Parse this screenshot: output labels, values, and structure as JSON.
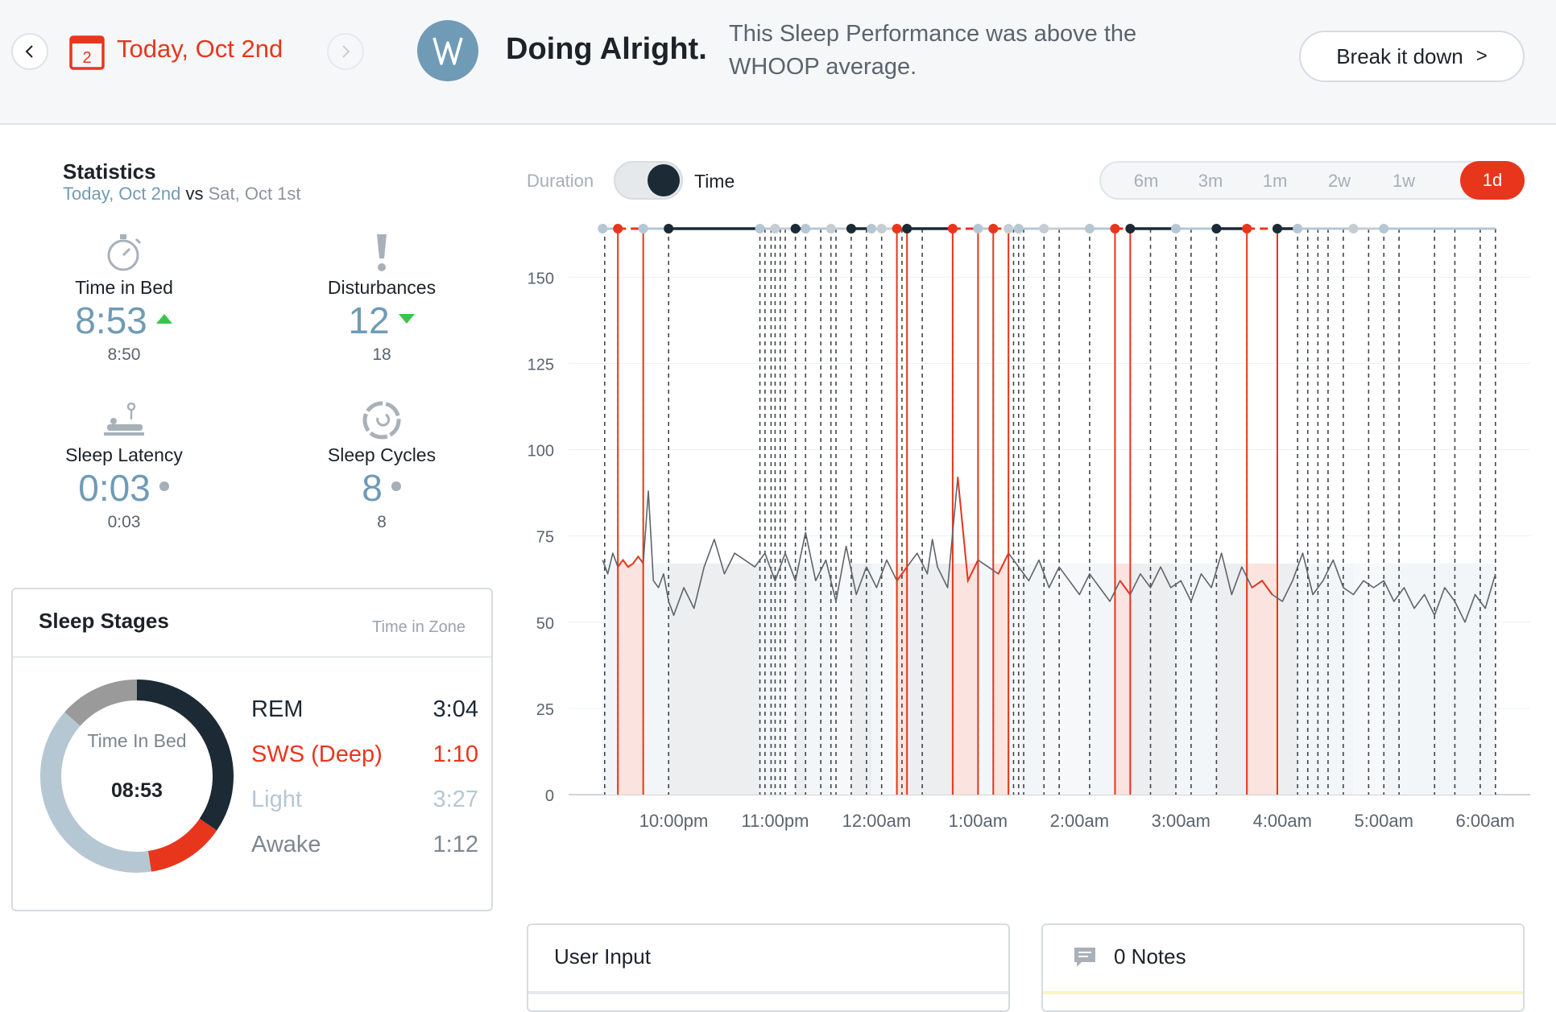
{
  "header": {
    "calendar_day": "2",
    "date_label": "Today, Oct 2nd",
    "headline": "Doing Alright.",
    "subline": "This Sleep Performance was above the WHOOP average.",
    "break_button_label": "Break it down",
    "break_button_chevron": ">",
    "logo_letters": "W"
  },
  "statistics": {
    "title": "Statistics",
    "current_label": "Today, Oct 2nd",
    "vs_label": "vs",
    "compare_label": "Sat, Oct 1st",
    "items": [
      {
        "label": "Time in Bed",
        "value": "8:53",
        "previous": "8:50",
        "trend": "up",
        "icon": "stopwatch-icon"
      },
      {
        "label": "Disturbances",
        "value": "12",
        "previous": "18",
        "trend": "down",
        "icon": "exclamation-icon"
      },
      {
        "label": "Sleep Latency",
        "value": "0:03",
        "previous": "0:03",
        "trend": "same",
        "icon": "bed-icon"
      },
      {
        "label": "Sleep Cycles",
        "value": "8",
        "previous": "8",
        "trend": "same",
        "icon": "cycle-icon"
      }
    ],
    "colors": {
      "value": "#6f9bb6",
      "up": "#3ac44a",
      "down": "#3ac44a",
      "same": "#a6afb8"
    }
  },
  "sleep_stages": {
    "title": "Sleep Stages",
    "subtitle": "Time in Zone",
    "center_label": "Time In Bed",
    "center_value": "08:53",
    "stages": [
      {
        "name": "REM",
        "time": "3:04",
        "fraction": 0.345,
        "color": "#1c2a35"
      },
      {
        "name": "SWS (Deep)",
        "time": "1:10",
        "fraction": 0.131,
        "color": "#e8361c"
      },
      {
        "name": "Light",
        "time": "3:27",
        "fraction": 0.389,
        "color": "#b5c7d3"
      },
      {
        "name": "Awake",
        "time": "1:12",
        "fraction": 0.135,
        "color": "#9a9a9a"
      }
    ]
  },
  "controls": {
    "toggle_left": "Duration",
    "toggle_right": "Time",
    "ranges": [
      "6m",
      "3m",
      "1m",
      "2w",
      "1w",
      "1d"
    ],
    "active_range": "1d"
  },
  "chart_data": {
    "type": "line",
    "y_ticks": [
      "0",
      "25",
      "50",
      "75",
      "100",
      "125",
      "150"
    ],
    "x_ticks": [
      "10:00pm",
      "11:00pm",
      "12:00am",
      "1:00am",
      "2:00am",
      "3:00am",
      "4:00am",
      "5:00am",
      "6:00am"
    ],
    "ylim": [
      0,
      165
    ],
    "xlim": [
      21.25,
      30.3
    ],
    "stage_colors": {
      "rem": "#1c2a35",
      "deep": "#e8361c",
      "light": "#b5c7d3",
      "awake": "#c5cdd4"
    },
    "segments": [
      {
        "stage": "light",
        "start": 21.3,
        "end": 21.45
      },
      {
        "stage": "deep",
        "start": 21.45,
        "end": 21.7
      },
      {
        "stage": "light",
        "start": 21.7,
        "end": 21.95
      },
      {
        "stage": "rem",
        "start": 21.95,
        "end": 22.85
      },
      {
        "stage": "light",
        "start": 22.85,
        "end": 23.0
      },
      {
        "stage": "awake",
        "start": 23.0,
        "end": 23.2
      },
      {
        "stage": "rem",
        "start": 23.2,
        "end": 23.3
      },
      {
        "stage": "light",
        "start": 23.3,
        "end": 23.55
      },
      {
        "stage": "awake",
        "start": 23.55,
        "end": 23.75
      },
      {
        "stage": "rem",
        "start": 23.75,
        "end": 23.95
      },
      {
        "stage": "light",
        "start": 23.95,
        "end": 24.05
      },
      {
        "stage": "awake",
        "start": 24.05,
        "end": 24.2
      },
      {
        "stage": "deep",
        "start": 24.2,
        "end": 24.3
      },
      {
        "stage": "rem",
        "start": 24.3,
        "end": 24.75
      },
      {
        "stage": "deep",
        "start": 24.75,
        "end": 25.0
      },
      {
        "stage": "light",
        "start": 25.0,
        "end": 25.15
      },
      {
        "stage": "deep",
        "start": 25.15,
        "end": 25.3
      },
      {
        "stage": "awake",
        "start": 25.3,
        "end": 25.4
      },
      {
        "stage": "light",
        "start": 25.4,
        "end": 25.65
      },
      {
        "stage": "awake",
        "start": 25.65,
        "end": 26.1
      },
      {
        "stage": "light",
        "start": 26.1,
        "end": 26.35
      },
      {
        "stage": "deep",
        "start": 26.35,
        "end": 26.5
      },
      {
        "stage": "rem",
        "start": 26.5,
        "end": 26.95
      },
      {
        "stage": "light",
        "start": 26.95,
        "end": 27.35
      },
      {
        "stage": "rem",
        "start": 27.35,
        "end": 27.65
      },
      {
        "stage": "deep",
        "start": 27.65,
        "end": 27.95
      },
      {
        "stage": "rem",
        "start": 27.95,
        "end": 28.15
      },
      {
        "stage": "light",
        "start": 28.15,
        "end": 28.7
      },
      {
        "stage": "awake",
        "start": 28.7,
        "end": 29.0
      },
      {
        "stage": "light",
        "start": 29.0,
        "end": 30.1
      }
    ],
    "transitions": [
      21.32,
      21.45,
      21.7,
      21.95,
      22.85,
      22.9,
      22.96,
      23.0,
      23.05,
      23.1,
      23.2,
      23.3,
      23.45,
      23.55,
      23.6,
      23.75,
      23.9,
      24.05,
      24.2,
      24.25,
      24.3,
      24.45,
      24.75,
      25.0,
      25.15,
      25.3,
      25.35,
      25.4,
      25.45,
      25.65,
      25.8,
      26.1,
      26.35,
      26.5,
      26.7,
      26.95,
      27.1,
      27.35,
      27.65,
      27.95,
      28.15,
      28.25,
      28.35,
      28.45,
      28.6,
      28.85,
      29.0,
      29.15,
      29.5,
      29.7,
      29.95,
      30.1
    ],
    "hr_series": [
      [
        21.3,
        68
      ],
      [
        21.35,
        64
      ],
      [
        21.4,
        70
      ],
      [
        21.45,
        66
      ],
      [
        21.5,
        68
      ],
      [
        21.55,
        66
      ],
      [
        21.6,
        67
      ],
      [
        21.65,
        69
      ],
      [
        21.7,
        67
      ],
      [
        21.75,
        88
      ],
      [
        21.8,
        62
      ],
      [
        21.85,
        60
      ],
      [
        21.9,
        64
      ],
      [
        21.95,
        56
      ],
      [
        22.0,
        52
      ],
      [
        22.1,
        60
      ],
      [
        22.2,
        54
      ],
      [
        22.3,
        66
      ],
      [
        22.4,
        74
      ],
      [
        22.5,
        64
      ],
      [
        22.6,
        70
      ],
      [
        22.7,
        68
      ],
      [
        22.8,
        66
      ],
      [
        22.9,
        70
      ],
      [
        23.0,
        62
      ],
      [
        23.1,
        70
      ],
      [
        23.2,
        62
      ],
      [
        23.3,
        76
      ],
      [
        23.4,
        62
      ],
      [
        23.5,
        68
      ],
      [
        23.6,
        56
      ],
      [
        23.7,
        72
      ],
      [
        23.8,
        58
      ],
      [
        23.9,
        66
      ],
      [
        24.0,
        60
      ],
      [
        24.1,
        68
      ],
      [
        24.2,
        62
      ],
      [
        24.3,
        66
      ],
      [
        24.4,
        70
      ],
      [
        24.5,
        64
      ],
      [
        24.55,
        74
      ],
      [
        24.6,
        66
      ],
      [
        24.7,
        60
      ],
      [
        24.8,
        92
      ],
      [
        24.9,
        62
      ],
      [
        25.0,
        68
      ],
      [
        25.1,
        66
      ],
      [
        25.2,
        64
      ],
      [
        25.3,
        70
      ],
      [
        25.4,
        66
      ],
      [
        25.5,
        62
      ],
      [
        25.6,
        68
      ],
      [
        25.7,
        60
      ],
      [
        25.8,
        66
      ],
      [
        25.9,
        62
      ],
      [
        26.0,
        58
      ],
      [
        26.1,
        64
      ],
      [
        26.2,
        60
      ],
      [
        26.3,
        56
      ],
      [
        26.4,
        62
      ],
      [
        26.5,
        58
      ],
      [
        26.6,
        64
      ],
      [
        26.7,
        60
      ],
      [
        26.8,
        66
      ],
      [
        26.9,
        60
      ],
      [
        27.0,
        62
      ],
      [
        27.1,
        56
      ],
      [
        27.2,
        64
      ],
      [
        27.3,
        60
      ],
      [
        27.4,
        70
      ],
      [
        27.5,
        58
      ],
      [
        27.6,
        66
      ],
      [
        27.7,
        60
      ],
      [
        27.8,
        62
      ],
      [
        27.9,
        58
      ],
      [
        28.0,
        56
      ],
      [
        28.1,
        62
      ],
      [
        28.2,
        70
      ],
      [
        28.3,
        58
      ],
      [
        28.4,
        62
      ],
      [
        28.5,
        68
      ],
      [
        28.6,
        60
      ],
      [
        28.7,
        58
      ],
      [
        28.8,
        62
      ],
      [
        28.9,
        60
      ],
      [
        29.0,
        62
      ],
      [
        29.1,
        56
      ],
      [
        29.2,
        60
      ],
      [
        29.3,
        54
      ],
      [
        29.4,
        58
      ],
      [
        29.5,
        52
      ],
      [
        29.6,
        60
      ],
      [
        29.7,
        56
      ],
      [
        29.8,
        50
      ],
      [
        29.9,
        58
      ],
      [
        30.0,
        54
      ],
      [
        30.1,
        64
      ]
    ]
  },
  "cards": {
    "user_input": "User Input",
    "notes": "0 Notes"
  }
}
